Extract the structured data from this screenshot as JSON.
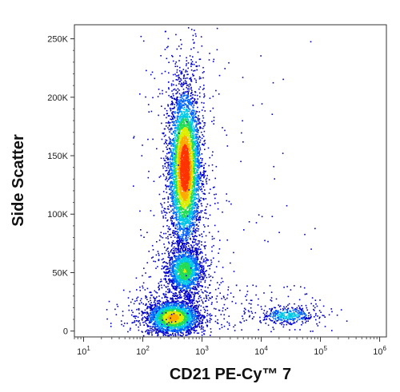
{
  "chart_data": {
    "type": "scatter",
    "subtype": "flow-cytometry-density-dot-plot",
    "xlabel": "CD21 PE-Cy™ 7",
    "ylabel": "Side Scatter",
    "x_scale": "log",
    "xlim": [
      7,
      1300000
    ],
    "ylim": [
      -5000,
      262000
    ],
    "x_ticks": [
      {
        "value": 10,
        "base": "10",
        "exp": "1"
      },
      {
        "value": 100,
        "base": "10",
        "exp": "2"
      },
      {
        "value": 1000,
        "base": "10",
        "exp": "3"
      },
      {
        "value": 10000,
        "base": "10",
        "exp": "4"
      },
      {
        "value": 100000,
        "base": "10",
        "exp": "5"
      },
      {
        "value": 1000000,
        "base": "10",
        "exp": "6"
      }
    ],
    "y_ticks": [
      {
        "value": 0,
        "label": "0"
      },
      {
        "value": 50000,
        "label": "50K"
      },
      {
        "value": 100000,
        "label": "100K"
      },
      {
        "value": 150000,
        "label": "150K"
      },
      {
        "value": 200000,
        "label": "200K"
      },
      {
        "value": 250000,
        "label": "250K"
      }
    ],
    "grid": false,
    "legend": "none",
    "color_scale": [
      "#0000cc",
      "#0066ff",
      "#00c8e6",
      "#22dd55",
      "#ddee00",
      "#ffaa00",
      "#ff3300"
    ],
    "populations": [
      {
        "center_x": 500,
        "center_y": 140000,
        "spread_log_x": 0.13,
        "spread_y": 32000,
        "count": 5200,
        "peak_density": 1.0
      },
      {
        "center_x": 500,
        "center_y": 52000,
        "spread_log_x": 0.15,
        "spread_y": 10000,
        "count": 1600,
        "peak_density": 0.55
      },
      {
        "center_x": 320,
        "center_y": 12000,
        "spread_log_x": 0.22,
        "spread_y": 7000,
        "count": 2600,
        "peak_density": 0.75
      },
      {
        "center_x": 28000,
        "center_y": 14000,
        "spread_log_x": 0.22,
        "spread_y": 3500,
        "count": 380,
        "peak_density": 0.4
      }
    ]
  }
}
